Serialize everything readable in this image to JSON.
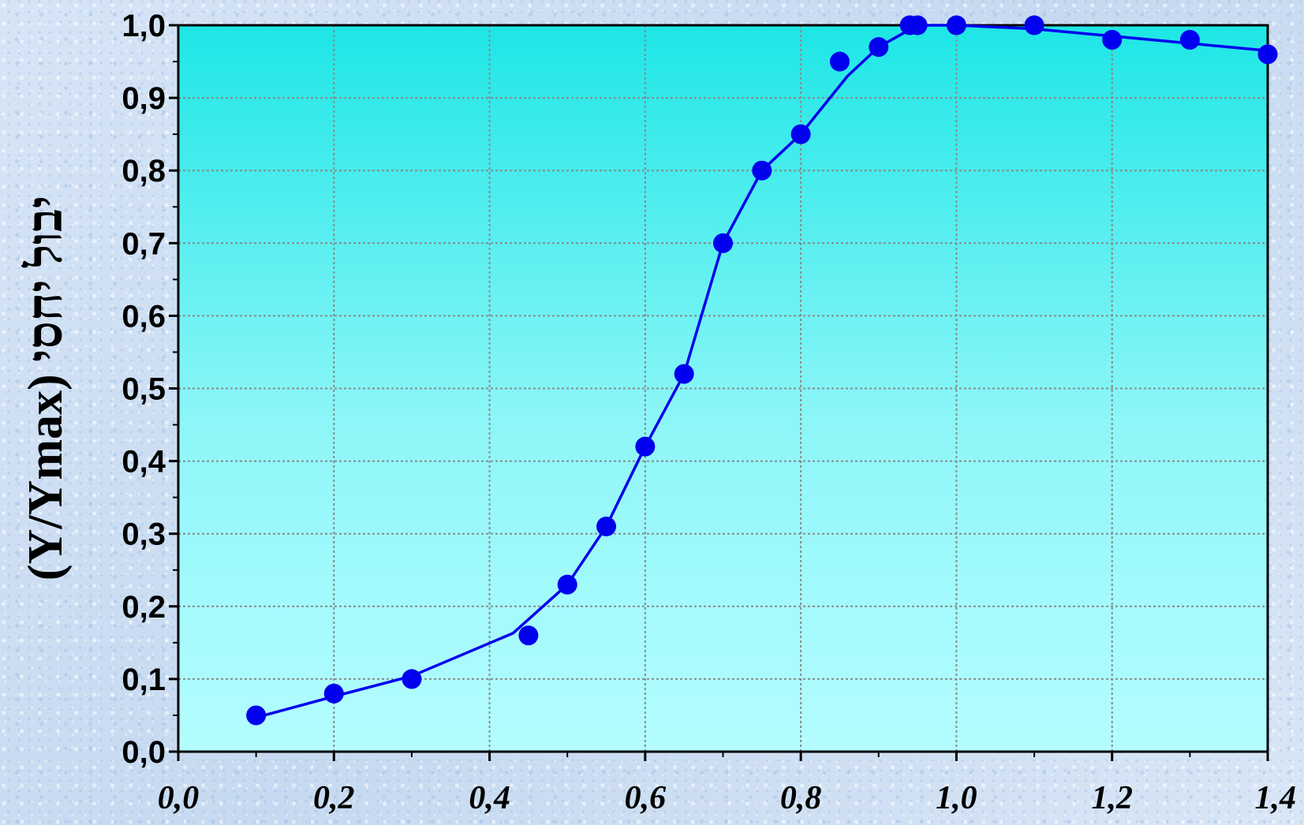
{
  "chart_data": {
    "type": "line",
    "title": "",
    "xlabel": "",
    "ylabel": "(Y/Ymax)  יבול יחסי",
    "xlim": [
      0.0,
      1.4
    ],
    "ylim": [
      0.0,
      1.0
    ],
    "grid": true,
    "x_ticks": [
      "0,0",
      "0,2",
      "0,4",
      "0,6",
      "0,8",
      "1,0",
      "1,2",
      "1,4"
    ],
    "y_ticks": [
      "0,0",
      "0,1",
      "0,2",
      "0,3",
      "0,4",
      "0,5",
      "0,6",
      "0,7",
      "0,8",
      "0,9",
      "1,0"
    ],
    "series": [
      {
        "type": "scatter",
        "color": "#0000ee",
        "x": [
          0.1,
          0.2,
          0.3,
          0.45,
          0.5,
          0.55,
          0.6,
          0.65,
          0.7,
          0.75,
          0.8,
          0.85,
          0.9,
          0.94,
          0.95,
          1.0,
          1.1,
          1.2,
          1.3,
          1.4
        ],
        "y": [
          0.05,
          0.08,
          0.1,
          0.16,
          0.23,
          0.31,
          0.42,
          0.52,
          0.7,
          0.8,
          0.85,
          0.95,
          0.97,
          1.0,
          1.0,
          1.0,
          1.0,
          0.98,
          0.98,
          0.96
        ]
      },
      {
        "type": "line",
        "color": "#0000ee",
        "x": [
          0.1,
          0.2,
          0.3,
          0.43,
          0.5,
          0.55,
          0.6,
          0.65,
          0.7,
          0.75,
          0.8,
          0.86,
          0.9,
          0.95,
          1.0,
          1.1,
          1.2,
          1.3,
          1.4
        ],
        "y": [
          0.047,
          0.076,
          0.104,
          0.163,
          0.23,
          0.31,
          0.42,
          0.52,
          0.7,
          0.8,
          0.85,
          0.93,
          0.97,
          1.0,
          1.0,
          0.995,
          0.985,
          0.975,
          0.965
        ]
      }
    ]
  }
}
